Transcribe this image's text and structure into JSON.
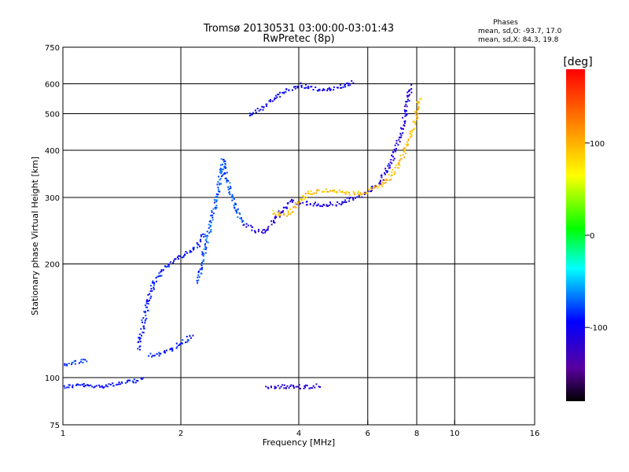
{
  "chart_data": {
    "type": "scatter",
    "title": "Tromsø 20130531 03:00:00-03:01:43",
    "subtitle": "RwPretec (8p)",
    "xlabel": "Frequency [MHz]",
    "ylabel": "Stationary phase Virtual Height [km]",
    "x_scale": "log",
    "y_scale": "log",
    "xlim": [
      1,
      16
    ],
    "ylim": [
      75,
      750
    ],
    "x_ticks": [
      1,
      2,
      4,
      6,
      8,
      10,
      16
    ],
    "y_ticks": [
      75,
      100,
      200,
      300,
      400,
      500,
      600,
      750
    ],
    "x_gridlines": [
      2,
      4,
      6,
      8,
      10
    ],
    "y_gridlines": [
      100,
      200,
      300,
      400,
      500,
      600
    ],
    "grid": true,
    "legend_block": {
      "title": "Phases",
      "line1": "mean, sd,O: -93.7, 17.0",
      "line2": "mean, sd,X:  84.3, 19.8"
    },
    "colorbar": {
      "unit_label": "[deg]",
      "range": [
        -180,
        180
      ],
      "ticks": [
        100,
        0,
        -100
      ]
    },
    "traces": [
      {
        "phase": -95,
        "points": [
          [
            1.0,
            95
          ],
          [
            1.1,
            96
          ],
          [
            1.2,
            95
          ],
          [
            1.3,
            96
          ],
          [
            1.4,
            97
          ],
          [
            1.5,
            98
          ],
          [
            1.6,
            100
          ]
        ]
      },
      {
        "phase": -85,
        "points": [
          [
            1.0,
            108
          ],
          [
            1.06,
            110
          ],
          [
            1.1,
            111
          ],
          [
            1.15,
            111
          ]
        ]
      },
      {
        "phase": -90,
        "points": [
          [
            1.55,
            120
          ],
          [
            1.62,
            150
          ],
          [
            1.7,
            180
          ],
          [
            1.8,
            195
          ],
          [
            1.9,
            205
          ],
          [
            2.0,
            210
          ],
          [
            2.2,
            225
          ],
          [
            2.3,
            245
          ]
        ]
      },
      {
        "phase": -92,
        "points": [
          [
            1.65,
            115
          ],
          [
            1.75,
            116
          ],
          [
            1.85,
            118
          ],
          [
            1.95,
            122
          ],
          [
            2.05,
            126
          ],
          [
            2.15,
            130
          ]
        ]
      },
      {
        "phase": -75,
        "points": [
          [
            2.2,
            180
          ],
          [
            2.3,
            220
          ],
          [
            2.4,
            270
          ],
          [
            2.5,
            330
          ],
          [
            2.55,
            380
          ],
          [
            2.6,
            340
          ],
          [
            2.7,
            300
          ],
          [
            2.8,
            270
          ],
          [
            2.9,
            255
          ]
        ]
      },
      {
        "phase": -110,
        "points": [
          [
            2.9,
            255
          ],
          [
            3.1,
            245
          ],
          [
            3.3,
            245
          ],
          [
            3.5,
            268
          ],
          [
            3.8,
            295
          ],
          [
            4.0,
            292
          ],
          [
            4.5,
            288
          ],
          [
            5.0,
            290
          ],
          [
            5.5,
            300
          ],
          [
            6.0,
            310
          ],
          [
            6.4,
            330
          ],
          [
            6.8,
            370
          ],
          [
            7.2,
            430
          ],
          [
            7.5,
            520
          ],
          [
            7.7,
            600
          ]
        ]
      },
      {
        "phase": 95,
        "points": [
          [
            3.4,
            275
          ],
          [
            3.7,
            270
          ],
          [
            4.2,
            310
          ],
          [
            4.8,
            315
          ],
          [
            5.3,
            308
          ],
          [
            5.8,
            310
          ],
          [
            6.3,
            320
          ],
          [
            6.8,
            340
          ],
          [
            7.2,
            370
          ],
          [
            7.6,
            430
          ],
          [
            7.9,
            480
          ],
          [
            8.1,
            560
          ]
        ]
      },
      {
        "phase": -100,
        "points": [
          [
            3.0,
            500
          ],
          [
            3.2,
            520
          ],
          [
            3.4,
            545
          ],
          [
            3.6,
            570
          ],
          [
            4.0,
            600
          ],
          [
            4.5,
            580
          ],
          [
            5.0,
            590
          ],
          [
            5.5,
            610
          ]
        ]
      },
      {
        "phase": -115,
        "points": [
          [
            3.3,
            95
          ],
          [
            3.6,
            95
          ],
          [
            4.2,
            95
          ],
          [
            4.5,
            96
          ]
        ]
      }
    ]
  }
}
